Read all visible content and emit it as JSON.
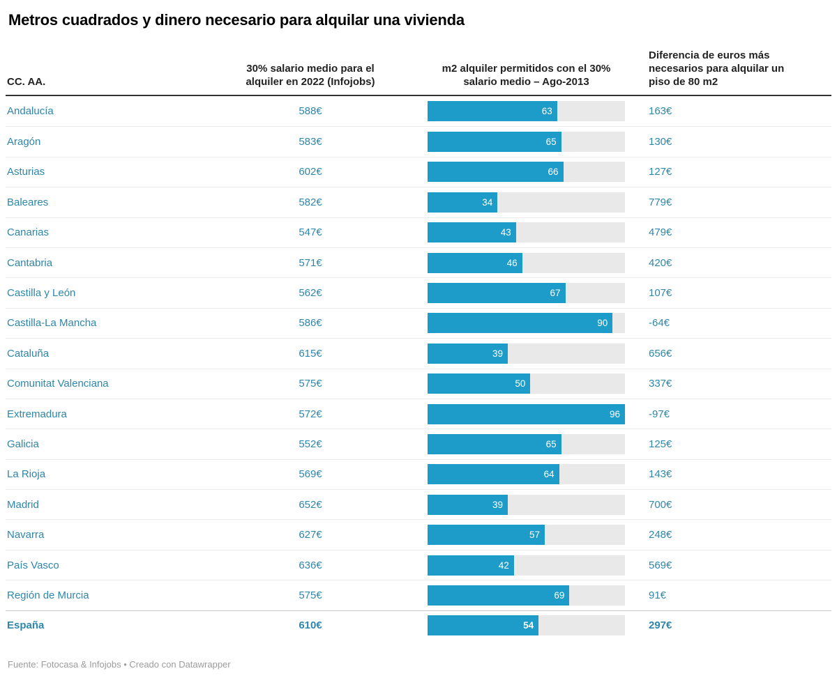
{
  "title": "Metros cuadrados y dinero necesario para alquilar una vivienda",
  "footer": "Fuente: Fotocasa & Infojobs • Creado con Datawrapper",
  "colors": {
    "bar": "#1d9bc9",
    "bar_track": "#e9e9e9",
    "row_text": "#2e86ab",
    "header_text": "#222222",
    "footer_text": "#9c9c9c",
    "header_rule": "#333333",
    "row_divider": "#ebebeb"
  },
  "chart_data": {
    "type": "table",
    "title": "Metros cuadrados y dinero necesario para alquilar una vivienda",
    "columns": [
      "CC. AA.",
      "30% salario medio para el alquiler en 2022 (Infojobs)",
      "m2 alquiler permitidos con el 30% salario medio – Ago-2013",
      "Diferencia de euros más necesarios para alquilar un piso de 80 m2"
    ],
    "bar_column_index": 2,
    "bar_axis_max": 96,
    "rows": [
      {
        "region": "Andalucía",
        "salary_30pct": "588€",
        "m2_allowed": 63,
        "diff_80m2": "163€",
        "bold": false
      },
      {
        "region": "Aragón",
        "salary_30pct": "583€",
        "m2_allowed": 65,
        "diff_80m2": "130€",
        "bold": false
      },
      {
        "region": "Asturias",
        "salary_30pct": "602€",
        "m2_allowed": 66,
        "diff_80m2": "127€",
        "bold": false
      },
      {
        "region": "Baleares",
        "salary_30pct": "582€",
        "m2_allowed": 34,
        "diff_80m2": "779€",
        "bold": false
      },
      {
        "region": "Canarias",
        "salary_30pct": "547€",
        "m2_allowed": 43,
        "diff_80m2": "479€",
        "bold": false
      },
      {
        "region": "Cantabria",
        "salary_30pct": "571€",
        "m2_allowed": 46,
        "diff_80m2": "420€",
        "bold": false
      },
      {
        "region": "Castilla y León",
        "salary_30pct": "562€",
        "m2_allowed": 67,
        "diff_80m2": "107€",
        "bold": false
      },
      {
        "region": "Castilla-La Mancha",
        "salary_30pct": "586€",
        "m2_allowed": 90,
        "diff_80m2": "-64€",
        "bold": false
      },
      {
        "region": "Cataluña",
        "salary_30pct": "615€",
        "m2_allowed": 39,
        "diff_80m2": "656€",
        "bold": false
      },
      {
        "region": "Comunitat Valenciana",
        "salary_30pct": "575€",
        "m2_allowed": 50,
        "diff_80m2": "337€",
        "bold": false
      },
      {
        "region": "Extremadura",
        "salary_30pct": "572€",
        "m2_allowed": 96,
        "diff_80m2": "-97€",
        "bold": false
      },
      {
        "region": "Galicia",
        "salary_30pct": "552€",
        "m2_allowed": 65,
        "diff_80m2": "125€",
        "bold": false
      },
      {
        "region": "La Rioja",
        "salary_30pct": "569€",
        "m2_allowed": 64,
        "diff_80m2": "143€",
        "bold": false
      },
      {
        "region": "Madrid",
        "salary_30pct": "652€",
        "m2_allowed": 39,
        "diff_80m2": "700€",
        "bold": false
      },
      {
        "region": "Navarra",
        "salary_30pct": "627€",
        "m2_allowed": 57,
        "diff_80m2": "248€",
        "bold": false
      },
      {
        "region": "País Vasco",
        "salary_30pct": "636€",
        "m2_allowed": 42,
        "diff_80m2": "569€",
        "bold": false
      },
      {
        "region": "Región de Murcia",
        "salary_30pct": "575€",
        "m2_allowed": 69,
        "diff_80m2": "91€",
        "bold": false
      },
      {
        "region": "España",
        "salary_30pct": "610€",
        "m2_allowed": 54,
        "diff_80m2": "297€",
        "bold": true
      }
    ]
  }
}
